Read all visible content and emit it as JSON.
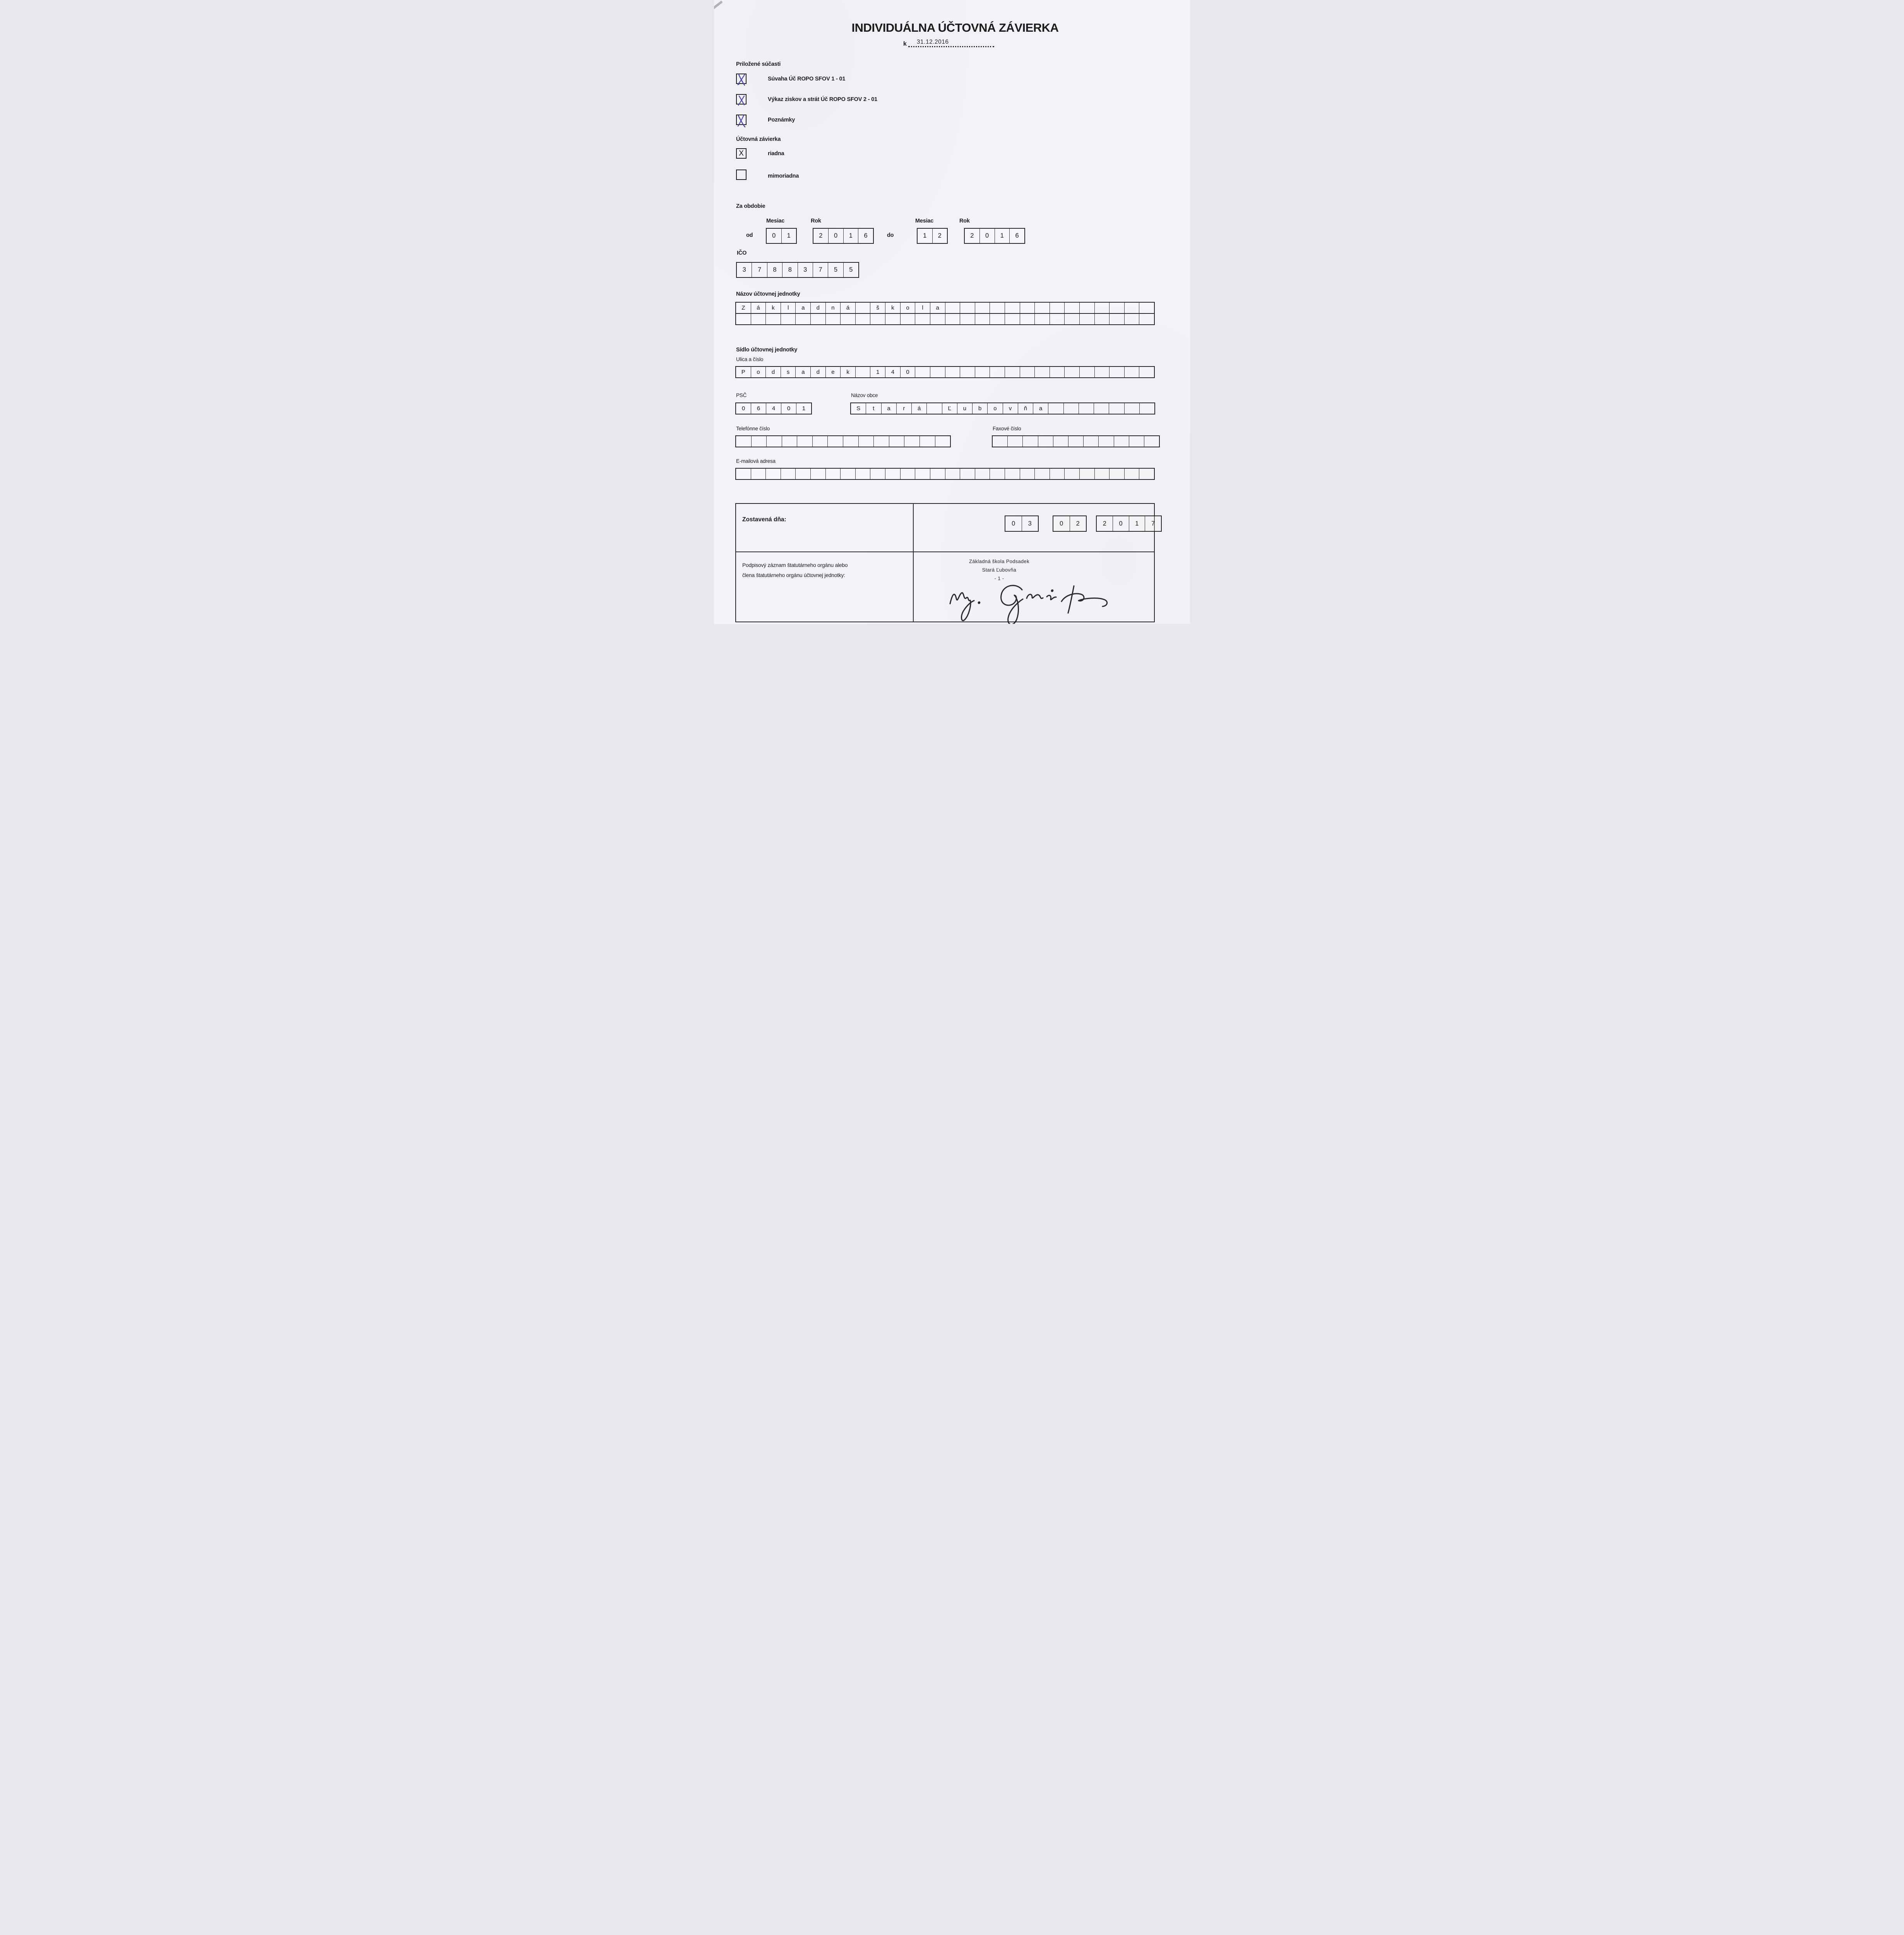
{
  "header": {
    "title": "INDIVIDUÁLNA ÚČTOVNÁ ZÁVIERKA",
    "date_prefix": "k",
    "date_value": "31.12.2016"
  },
  "attachments": {
    "heading": "Priložené súčasti",
    "items": [
      {
        "label": "Súvaha Úč ROPO SFOV 1 - 01",
        "checked": true
      },
      {
        "label": "Výkaz ziskov a strát Úč ROPO SFOV 2 - 01",
        "checked": true
      },
      {
        "label": "Poznámky",
        "checked": true
      }
    ]
  },
  "closing": {
    "heading": "Účtovná závierka",
    "items": [
      {
        "label": "riadna",
        "checked": true,
        "mark": "X"
      },
      {
        "label": "mimoriadna",
        "checked": false,
        "mark": ""
      }
    ]
  },
  "period": {
    "heading": "Za obdobie",
    "month_label": "Mesiac",
    "year_label": "Rok",
    "from_label": "od",
    "to_label": "do",
    "from_month": [
      "0",
      "1"
    ],
    "from_year": [
      "2",
      "0",
      "1",
      "6"
    ],
    "to_month": [
      "1",
      "2"
    ],
    "to_year": [
      "2",
      "0",
      "1",
      "6"
    ]
  },
  "ico": {
    "label": "IČO",
    "digits": [
      "3",
      "7",
      "8",
      "8",
      "3",
      "7",
      "5",
      "5"
    ]
  },
  "entity_name": {
    "label": "Názov účtovnej jednotky",
    "row1": [
      "Z",
      "á",
      "k",
      "l",
      "a",
      "d",
      "n",
      "á",
      "",
      "š",
      "k",
      "o",
      "l",
      "a",
      "",
      "",
      "",
      "",
      "",
      "",
      "",
      "",
      "",
      "",
      "",
      "",
      "",
      ""
    ],
    "row2": [
      "",
      "",
      "",
      "",
      "",
      "",
      "",
      "",
      "",
      "",
      "",
      "",
      "",
      "",
      "",
      "",
      "",
      "",
      "",
      "",
      "",
      "",
      "",
      "",
      "",
      "",
      "",
      ""
    ]
  },
  "address": {
    "heading": "Sídlo účtovnej jednotky",
    "street_label": "Ulica a číslo",
    "street_row": [
      "P",
      "o",
      "d",
      "s",
      "a",
      "d",
      "e",
      "k",
      "",
      "1",
      "4",
      "0",
      "",
      "",
      "",
      "",
      "",
      "",
      "",
      "",
      "",
      "",
      "",
      "",
      "",
      "",
      "",
      ""
    ],
    "psc_label": "PSČ",
    "psc_row": [
      "0",
      "6",
      "4",
      "0",
      "1"
    ],
    "town_label": "Názov obce",
    "town_row": [
      "S",
      "t",
      "a",
      "r",
      "á",
      "",
      "Ľ",
      "u",
      "b",
      "o",
      "v",
      "ň",
      "a",
      "",
      "",
      "",
      "",
      "",
      "",
      ""
    ],
    "phone_label": "Telefónne číslo",
    "phone_row": [
      "",
      "",
      "",
      "",
      "",
      "",
      "",
      "",
      "",
      "",
      "",
      "",
      "",
      ""
    ],
    "fax_label": "Faxové číslo",
    "fax_row": [
      "",
      "",
      "",
      "",
      "",
      "",
      "",
      "",
      "",
      "",
      ""
    ],
    "email_label": "E-mailová adresa",
    "email_row": [
      "",
      "",
      "",
      "",
      "",
      "",
      "",
      "",
      "",
      "",
      "",
      "",
      "",
      "",
      "",
      "",
      "",
      "",
      "",
      "",
      "",
      "",
      "",
      "",
      "",
      "",
      "",
      ""
    ]
  },
  "footer": {
    "compiled_label": "Zostavená dňa:",
    "compiled_day": [
      "0",
      "3"
    ],
    "compiled_month": [
      "0",
      "2"
    ],
    "compiled_year": [
      "2",
      "0",
      "1",
      "7"
    ],
    "signatory_line1": "Podpisový záznam štatutárneho orgánu alebo",
    "signatory_line2": "člena štatutárneho orgánu účtovnej jednotky:",
    "stamp_line1": "Základná škola Podsadek",
    "stamp_line2": "Stará Ľubovňa",
    "stamp_line3": "- 1 -"
  }
}
